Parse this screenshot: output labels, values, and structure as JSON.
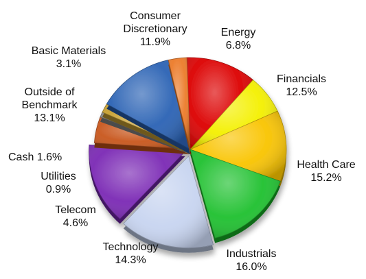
{
  "chart_data": {
    "type": "pie",
    "title": "",
    "slices": [
      {
        "label": "Consumer Discretionary",
        "value": 11.9,
        "value_label": "11.9%",
        "color": "#dc0000"
      },
      {
        "label": "Energy",
        "value": 6.8,
        "value_label": "6.8%",
        "color": "#f4f000"
      },
      {
        "label": "Financials",
        "value": 12.5,
        "value_label": "12.5%",
        "color": "#f9c400"
      },
      {
        "label": "Health Care",
        "value": 15.2,
        "value_label": "15.2%",
        "color": "#1ec02e"
      },
      {
        "label": "Industrials",
        "value": 16.0,
        "value_label": "16.0%",
        "color": "#c7d4f0"
      },
      {
        "label": "Technology",
        "value": 14.3,
        "value_label": "14.3%",
        "color": "#7a28b4"
      },
      {
        "label": "Telecom",
        "value": 4.6,
        "value_label": "4.6%",
        "color": "#c8561c"
      },
      {
        "label": "Utilities",
        "value": 0.9,
        "value_label": "0.9%",
        "color": "#8a8a8a"
      },
      {
        "label": "Cash",
        "value": 1.6,
        "value_label": "1.6%",
        "color": "#c8a030"
      },
      {
        "label": "Outside of Benchmark",
        "value": 13.1,
        "value_label": "13.1%",
        "color": "#2a62b4"
      },
      {
        "label": "Basic Materials",
        "value": 3.1,
        "value_label": "3.1%",
        "color": "#ec7a28"
      }
    ],
    "labels": [
      {
        "lines": [
          "Consumer",
          "Discretionary",
          "11.9%"
        ]
      },
      {
        "lines": [
          "Energy",
          "6.8%"
        ]
      },
      {
        "lines": [
          "Financials",
          "12.5%"
        ]
      },
      {
        "lines": [
          "Health Care",
          "15.2%"
        ]
      },
      {
        "lines": [
          "Industrials",
          "16.0%"
        ]
      },
      {
        "lines": [
          "Technology",
          "14.3%"
        ]
      },
      {
        "lines": [
          "Telecom",
          "4.6%"
        ]
      },
      {
        "lines": [
          "Utilities",
          "0.9%"
        ]
      },
      {
        "lines": [
          "Cash 1.6%"
        ]
      },
      {
        "lines": [
          "Outside of",
          "Benchmark",
          "13.1%"
        ]
      },
      {
        "lines": [
          "Basic Materials",
          "3.1%"
        ]
      }
    ],
    "legend": "none",
    "style": "3d-exploded-pie"
  }
}
